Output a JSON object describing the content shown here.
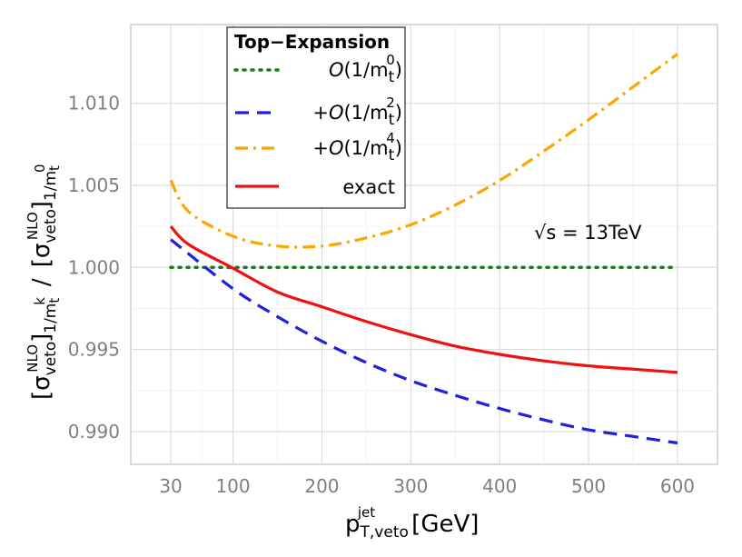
{
  "chart_data": {
    "type": "line",
    "title": "",
    "xlabel": {
      "base": "p",
      "sub": "T,veto",
      "sup": "jet",
      "unit": "[GeV]"
    },
    "ylabel": {
      "sigma": "σ",
      "sub1": "veto",
      "sup1": "NLO",
      "den1_sub": "1/m",
      "den1_sub_sub": "t",
      "den1_sub_sup": "k",
      "slash": "/",
      "sub2": "veto",
      "sup2": "NLO",
      "den2_sub": "1/m",
      "den2_sub_sub": "t",
      "den2_sub_sup": "0"
    },
    "x_ticks": [
      30,
      100,
      200,
      300,
      400,
      500,
      600
    ],
    "x_tick_labels": [
      "30",
      "100",
      "200",
      "300",
      "400",
      "500",
      "600"
    ],
    "y_ticks": [
      0.99,
      0.995,
      1.0,
      1.005,
      1.01
    ],
    "y_tick_labels": [
      "0.990",
      "0.995",
      "1.000",
      "1.005",
      "1.010"
    ],
    "xlim": [
      -15,
      645
    ],
    "ylim": [
      0.988,
      1.0148
    ],
    "grid": true,
    "legend": {
      "title": "Top−Expansion",
      "position": "top-left",
      "entries": [
        {
          "name": "O(1/m_t^0)",
          "prefix": "",
          "O": "O",
          "open": "(1/m",
          "sub": "t",
          "sup": "0",
          "close": ")",
          "color": "#1a7f1a",
          "dash": "dotted"
        },
        {
          "name": "+O(1/m_t^2)",
          "prefix": "+",
          "O": "O",
          "open": "(1/m",
          "sub": "t",
          "sup": "2",
          "close": ")",
          "color": "#1f1fe0",
          "dash": "dashed"
        },
        {
          "name": "+O(1/m_t^4)",
          "prefix": "+",
          "O": "O",
          "open": "(1/m",
          "sub": "t",
          "sup": "4",
          "close": ")",
          "color": "#ffa500",
          "dash": "dashdot"
        },
        {
          "name": "exact",
          "label": "exact",
          "color": "#ee1111",
          "dash": "solid"
        }
      ]
    },
    "annotation": {
      "text": "√s = 13TeV",
      "x": 500,
      "y": 1.0019
    },
    "series": [
      {
        "name": "O(1/m_t^0)",
        "color": "#1a7f1a",
        "dash": "dotted",
        "x": [
          30,
          600
        ],
        "y": [
          1.0,
          1.0
        ]
      },
      {
        "name": "+O(1/m_t^2)",
        "color": "#1f1fe0",
        "dash": "dashed",
        "x": [
          30,
          100,
          150,
          200,
          250,
          300,
          350,
          400,
          450,
          500,
          550,
          600
        ],
        "y": [
          1.0017,
          0.9987,
          0.997,
          0.9955,
          0.9942,
          0.9931,
          0.9922,
          0.9914,
          0.9907,
          0.9901,
          0.9897,
          0.9893
        ]
      },
      {
        "name": "+O(1/m_t^4)",
        "color": "#ffa500",
        "dash": "dashdot",
        "x": [
          30,
          50,
          100,
          150,
          200,
          250,
          300,
          350,
          400,
          450,
          500,
          550,
          600
        ],
        "y": [
          1.0053,
          1.0034,
          1.0019,
          1.0013,
          1.0013,
          1.0018,
          1.0026,
          1.0038,
          1.0053,
          1.0071,
          1.009,
          1.011,
          1.013
        ]
      },
      {
        "name": "exact",
        "color": "#ee1111",
        "dash": "solid",
        "x": [
          30,
          50,
          100,
          150,
          200,
          250,
          300,
          350,
          400,
          450,
          500,
          550,
          600
        ],
        "y": [
          1.0025,
          1.0014,
          0.99995,
          0.9985,
          0.9976,
          0.9967,
          0.9959,
          0.9952,
          0.9947,
          0.9943,
          0.994,
          0.9938,
          0.9936
        ]
      }
    ]
  }
}
